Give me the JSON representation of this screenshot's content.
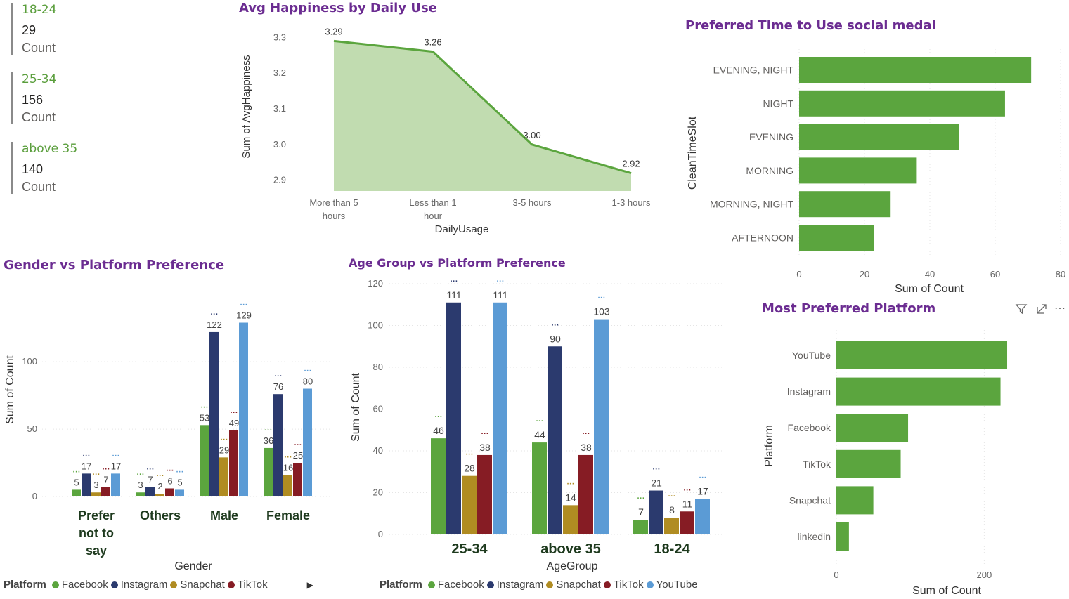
{
  "cards": [
    {
      "label": "18-24",
      "value": "29",
      "unit": "Count"
    },
    {
      "label": "25-34",
      "value": "156",
      "unit": "Count"
    },
    {
      "label": "above 35",
      "value": "140",
      "unit": "Count"
    }
  ],
  "colors": {
    "Facebook": "#5ba53e",
    "Instagram": "#2b3a6e",
    "Snapchat": "#b08c22",
    "TikTok": "#861c24",
    "YouTube": "#5b9bd5",
    "bar": "#5ba53e",
    "area": "#c1dcb0",
    "line": "#5ba53e",
    "title": "#6b2c91"
  },
  "header_icons": [
    "filter-icon",
    "focus-mode-icon",
    "more-options-icon"
  ],
  "chart_data": [
    {
      "id": "happiness",
      "type": "area",
      "title": "Avg Happiness by Daily Use",
      "xlabel": "DailyUsage",
      "ylabel": "Sum of AvgHappiness",
      "categories": [
        "More than 5 hours",
        "Less than 1 hour",
        "3-5 hours",
        "1-3 hours"
      ],
      "values": [
        3.29,
        3.26,
        3.0,
        2.92
      ],
      "data_labels": [
        "3.29",
        "3.26",
        "3.00",
        "2.92"
      ],
      "yticks": [
        "3.3",
        "3.2",
        "3.1",
        "3.0",
        "2.9"
      ],
      "ylim": [
        2.87,
        3.33
      ]
    },
    {
      "id": "time",
      "type": "bar",
      "orientation": "horizontal",
      "title": "Preferred Time to Use social medai",
      "xlabel": "Sum of Count",
      "ylabel": "CleanTimeSlot",
      "categories": [
        "EVENING, NIGHT",
        "NIGHT",
        "EVENING",
        "MORNING",
        "MORNING, NIGHT",
        "AFTERNOON"
      ],
      "values": [
        71,
        63,
        49,
        36,
        28,
        23
      ],
      "xticks": [
        "0",
        "20",
        "40",
        "60",
        "80"
      ],
      "xlim": [
        0,
        80
      ]
    },
    {
      "id": "gender",
      "type": "bar",
      "title": "Gender vs Platform Preference",
      "xlabel": "Gender",
      "ylabel": "Sum of Count",
      "categories": [
        "Prefer not to say",
        "Others",
        "Male",
        "Female"
      ],
      "series": [
        {
          "name": "Facebook",
          "values": [
            5,
            3,
            53,
            36
          ]
        },
        {
          "name": "Instagram",
          "values": [
            17,
            7,
            122,
            76
          ]
        },
        {
          "name": "Snapchat",
          "values": [
            3,
            2,
            29,
            16
          ]
        },
        {
          "name": "TikTok",
          "values": [
            7,
            6,
            49,
            25
          ]
        },
        {
          "name": "YouTube",
          "values": [
            17,
            5,
            129,
            80
          ]
        }
      ],
      "yticks": [
        "0",
        "50",
        "100"
      ],
      "ylim": [
        0,
        135
      ],
      "legend_title": "Platform",
      "legend": [
        "Facebook",
        "Instagram",
        "Snapchat",
        "TikTok"
      ],
      "legend_arrow": "▶"
    },
    {
      "id": "age",
      "type": "bar",
      "title": "Age Group vs Platform Preference",
      "xlabel": "AgeGroup",
      "ylabel": "Sum of Count",
      "categories": [
        "25-34",
        "above 35",
        "18-24"
      ],
      "series": [
        {
          "name": "Facebook",
          "values": [
            46,
            44,
            7
          ]
        },
        {
          "name": "Instagram",
          "values": [
            111,
            90,
            21
          ]
        },
        {
          "name": "Snapchat",
          "values": [
            28,
            14,
            8
          ]
        },
        {
          "name": "TikTok",
          "values": [
            38,
            38,
            11
          ]
        },
        {
          "name": "YouTube",
          "values": [
            111,
            103,
            17
          ]
        }
      ],
      "yticks": [
        "0",
        "20",
        "40",
        "60",
        "80",
        "100",
        "120"
      ],
      "ylim": [
        0,
        120
      ],
      "legend_title": "Platform",
      "legend": [
        "Facebook",
        "Instagram",
        "Snapchat",
        "TikTok",
        "YouTube"
      ]
    },
    {
      "id": "platform",
      "type": "bar",
      "orientation": "horizontal",
      "title": "Most Preferred Platform",
      "xlabel": "Sum of Count",
      "ylabel": "Platform",
      "categories": [
        "YouTube",
        "Instagram",
        "Facebook",
        "TikTok",
        "Snapchat",
        "linkedin"
      ],
      "values": [
        231,
        222,
        97,
        87,
        50,
        17
      ],
      "xticks": [
        "0",
        "200"
      ],
      "xlim": [
        0,
        250
      ]
    }
  ]
}
